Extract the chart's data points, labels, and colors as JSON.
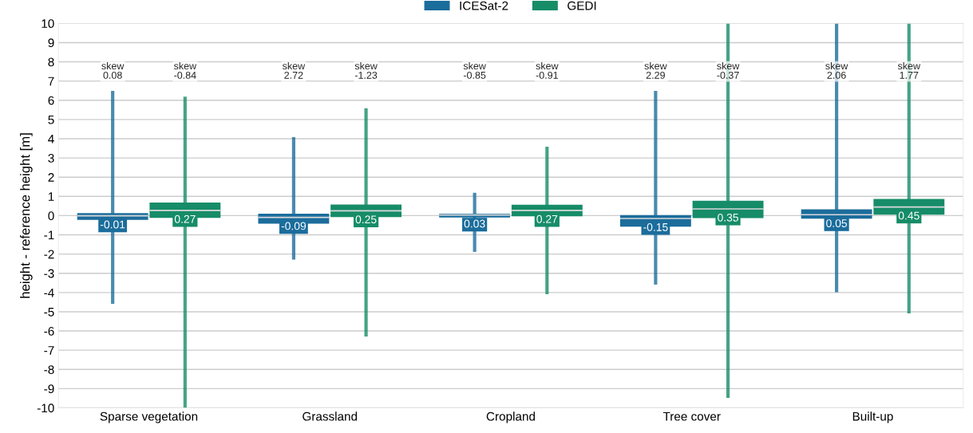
{
  "chart_data": {
    "type": "box",
    "ylabel": "height - reference height [m]",
    "categories": [
      "Sparse vegetation",
      "Grassland",
      "Cropland",
      "Tree cover",
      "Built-up"
    ],
    "series": [
      {
        "name": "ICESat-2",
        "color": "#1b6d9c",
        "value_labels": [
          "-0.01",
          "-0.09",
          "0.03",
          "-0.15",
          "0.05"
        ],
        "boxes": [
          {
            "low": -4.5,
            "q1": -0.22,
            "median": -0.01,
            "q3": 0.13,
            "high": 6.4
          },
          {
            "low": -2.2,
            "q1": -0.42,
            "median": -0.09,
            "q3": 0.1,
            "high": 4.0
          },
          {
            "low": -1.8,
            "q1": -0.1,
            "median": 0.03,
            "q3": 0.1,
            "high": 1.1
          },
          {
            "low": -3.5,
            "q1": -0.57,
            "median": -0.15,
            "q3": 0.03,
            "high": 6.4
          },
          {
            "low": -3.9,
            "q1": -0.16,
            "median": 0.05,
            "q3": 0.33,
            "high": 10
          }
        ]
      },
      {
        "name": "GEDI",
        "color": "#168c68",
        "value_labels": [
          "0.27",
          "0.25",
          "0.27",
          "0.35",
          "0.45"
        ],
        "boxes": [
          {
            "low": -10,
            "q1": -0.12,
            "median": 0.27,
            "q3": 0.68,
            "high": 6.1
          },
          {
            "low": -6.2,
            "q1": -0.08,
            "median": 0.25,
            "q3": 0.58,
            "high": 5.5
          },
          {
            "low": -4.0,
            "q1": -0.03,
            "median": 0.27,
            "q3": 0.57,
            "high": 3.5
          },
          {
            "low": -9.4,
            "q1": -0.13,
            "median": 0.35,
            "q3": 0.77,
            "high": 10
          },
          {
            "low": -5.0,
            "q1": 0.05,
            "median": 0.45,
            "q3": 0.87,
            "high": 10
          }
        ]
      }
    ],
    "annotations": [
      "skew\n0.08",
      "skew\n-0.84",
      "skew\n2.72",
      "skew\n-1.23",
      "skew\n-0.85",
      "skew\n-0.91",
      "skew\n2.29",
      "skew\n-0.37",
      "skew\n2.06",
      "skew\n1.77"
    ],
    "ylim": [
      -10,
      10
    ],
    "yticks": [
      -10,
      -9,
      -8,
      -7,
      -6,
      -5,
      -4,
      -3,
      -2,
      -1,
      0,
      1,
      2,
      3,
      4,
      5,
      6,
      7,
      8,
      9,
      10
    ],
    "grid": "y",
    "legend": "top"
  }
}
